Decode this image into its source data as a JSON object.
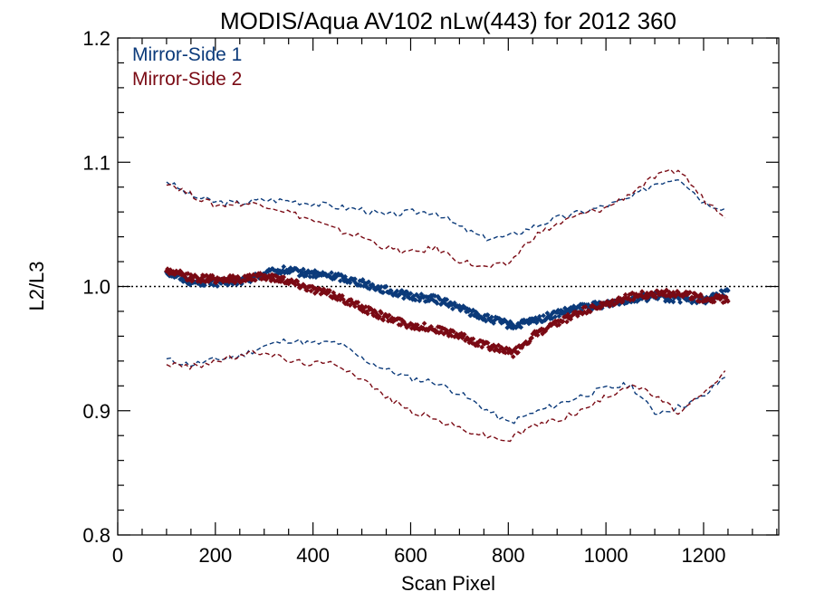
{
  "chart_data": {
    "type": "scatter",
    "title": "MODIS/Aqua AV102 nLw(443) for 2012 360",
    "xlabel": "Scan Pixel",
    "ylabel": "L2/L3",
    "xlim": [
      0,
      1354
    ],
    "ylim": [
      0.8,
      1.2
    ],
    "x_ticks": [
      "0",
      "200",
      "400",
      "600",
      "800",
      "1000",
      "1200"
    ],
    "y_ticks": [
      "0.8",
      "0.9",
      "1.0",
      "1.1",
      "1.2"
    ],
    "reference_line": 1.0,
    "legend": {
      "placement": "top-left"
    },
    "series": [
      {
        "name": "Mirror-Side 1",
        "color": "#0b3a7a",
        "mean": {
          "x": [
            100,
            150,
            200,
            250,
            300,
            340,
            400,
            450,
            500,
            550,
            600,
            650,
            700,
            750,
            780,
            810,
            850,
            900,
            950,
            1000,
            1050,
            1100,
            1150,
            1200,
            1250
          ],
          "y": [
            1.012,
            1.004,
            1.003,
            1.004,
            1.01,
            1.013,
            1.01,
            1.008,
            1.003,
            0.997,
            0.992,
            0.99,
            0.983,
            0.975,
            0.972,
            0.968,
            0.972,
            0.978,
            0.983,
            0.986,
            0.99,
            0.992,
            0.99,
            0.989,
            0.996
          ]
        },
        "upper": {
          "x": [
            100,
            150,
            200,
            250,
            300,
            350,
            400,
            450,
            500,
            550,
            600,
            650,
            700,
            750,
            800,
            850,
            900,
            950,
            1000,
            1050,
            1100,
            1150,
            1200,
            1250
          ],
          "y": [
            1.085,
            1.073,
            1.068,
            1.067,
            1.07,
            1.069,
            1.067,
            1.064,
            1.062,
            1.057,
            1.06,
            1.06,
            1.048,
            1.039,
            1.04,
            1.048,
            1.055,
            1.06,
            1.065,
            1.071,
            1.083,
            1.088,
            1.068,
            1.062
          ]
        },
        "lower": {
          "x": [
            100,
            150,
            200,
            250,
            300,
            350,
            400,
            450,
            500,
            550,
            600,
            650,
            700,
            750,
            800,
            850,
            900,
            950,
            1000,
            1050,
            1100,
            1150,
            1200,
            1250
          ],
          "y": [
            0.941,
            0.937,
            0.941,
            0.944,
            0.952,
            0.957,
            0.954,
            0.955,
            0.942,
            0.933,
            0.926,
            0.923,
            0.914,
            0.902,
            0.89,
            0.898,
            0.905,
            0.912,
            0.918,
            0.921,
            0.898,
            0.903,
            0.911,
            0.93
          ]
        }
      },
      {
        "name": "Mirror-Side 2",
        "color": "#7a0a14",
        "mean": {
          "x": [
            100,
            150,
            200,
            250,
            300,
            340,
            400,
            450,
            500,
            550,
            600,
            650,
            700,
            750,
            780,
            810,
            850,
            900,
            950,
            1000,
            1050,
            1100,
            1150,
            1200,
            1250
          ],
          "y": [
            1.013,
            1.007,
            1.006,
            1.006,
            1.008,
            1.006,
            0.998,
            0.992,
            0.983,
            0.975,
            0.969,
            0.966,
            0.96,
            0.953,
            0.95,
            0.946,
            0.96,
            0.97,
            0.98,
            0.985,
            0.992,
            0.994,
            0.995,
            0.99,
            0.99
          ]
        },
        "upper": {
          "x": [
            100,
            150,
            200,
            250,
            300,
            350,
            400,
            450,
            500,
            550,
            600,
            650,
            700,
            750,
            800,
            850,
            900,
            950,
            1000,
            1050,
            1100,
            1150,
            1200,
            1250
          ],
          "y": [
            1.084,
            1.074,
            1.065,
            1.067,
            1.066,
            1.06,
            1.053,
            1.045,
            1.04,
            1.031,
            1.027,
            1.031,
            1.021,
            1.015,
            1.018,
            1.04,
            1.05,
            1.058,
            1.063,
            1.075,
            1.088,
            1.094,
            1.07,
            1.056
          ]
        },
        "lower": {
          "x": [
            100,
            150,
            200,
            250,
            300,
            350,
            400,
            450,
            500,
            550,
            600,
            650,
            700,
            750,
            800,
            850,
            900,
            950,
            1000,
            1050,
            1100,
            1150,
            1200,
            1250
          ],
          "y": [
            0.938,
            0.935,
            0.94,
            0.944,
            0.948,
            0.94,
            0.938,
            0.938,
            0.926,
            0.911,
            0.9,
            0.893,
            0.886,
            0.88,
            0.876,
            0.888,
            0.893,
            0.9,
            0.911,
            0.922,
            0.912,
            0.898,
            0.913,
            0.933
          ]
        }
      }
    ]
  }
}
